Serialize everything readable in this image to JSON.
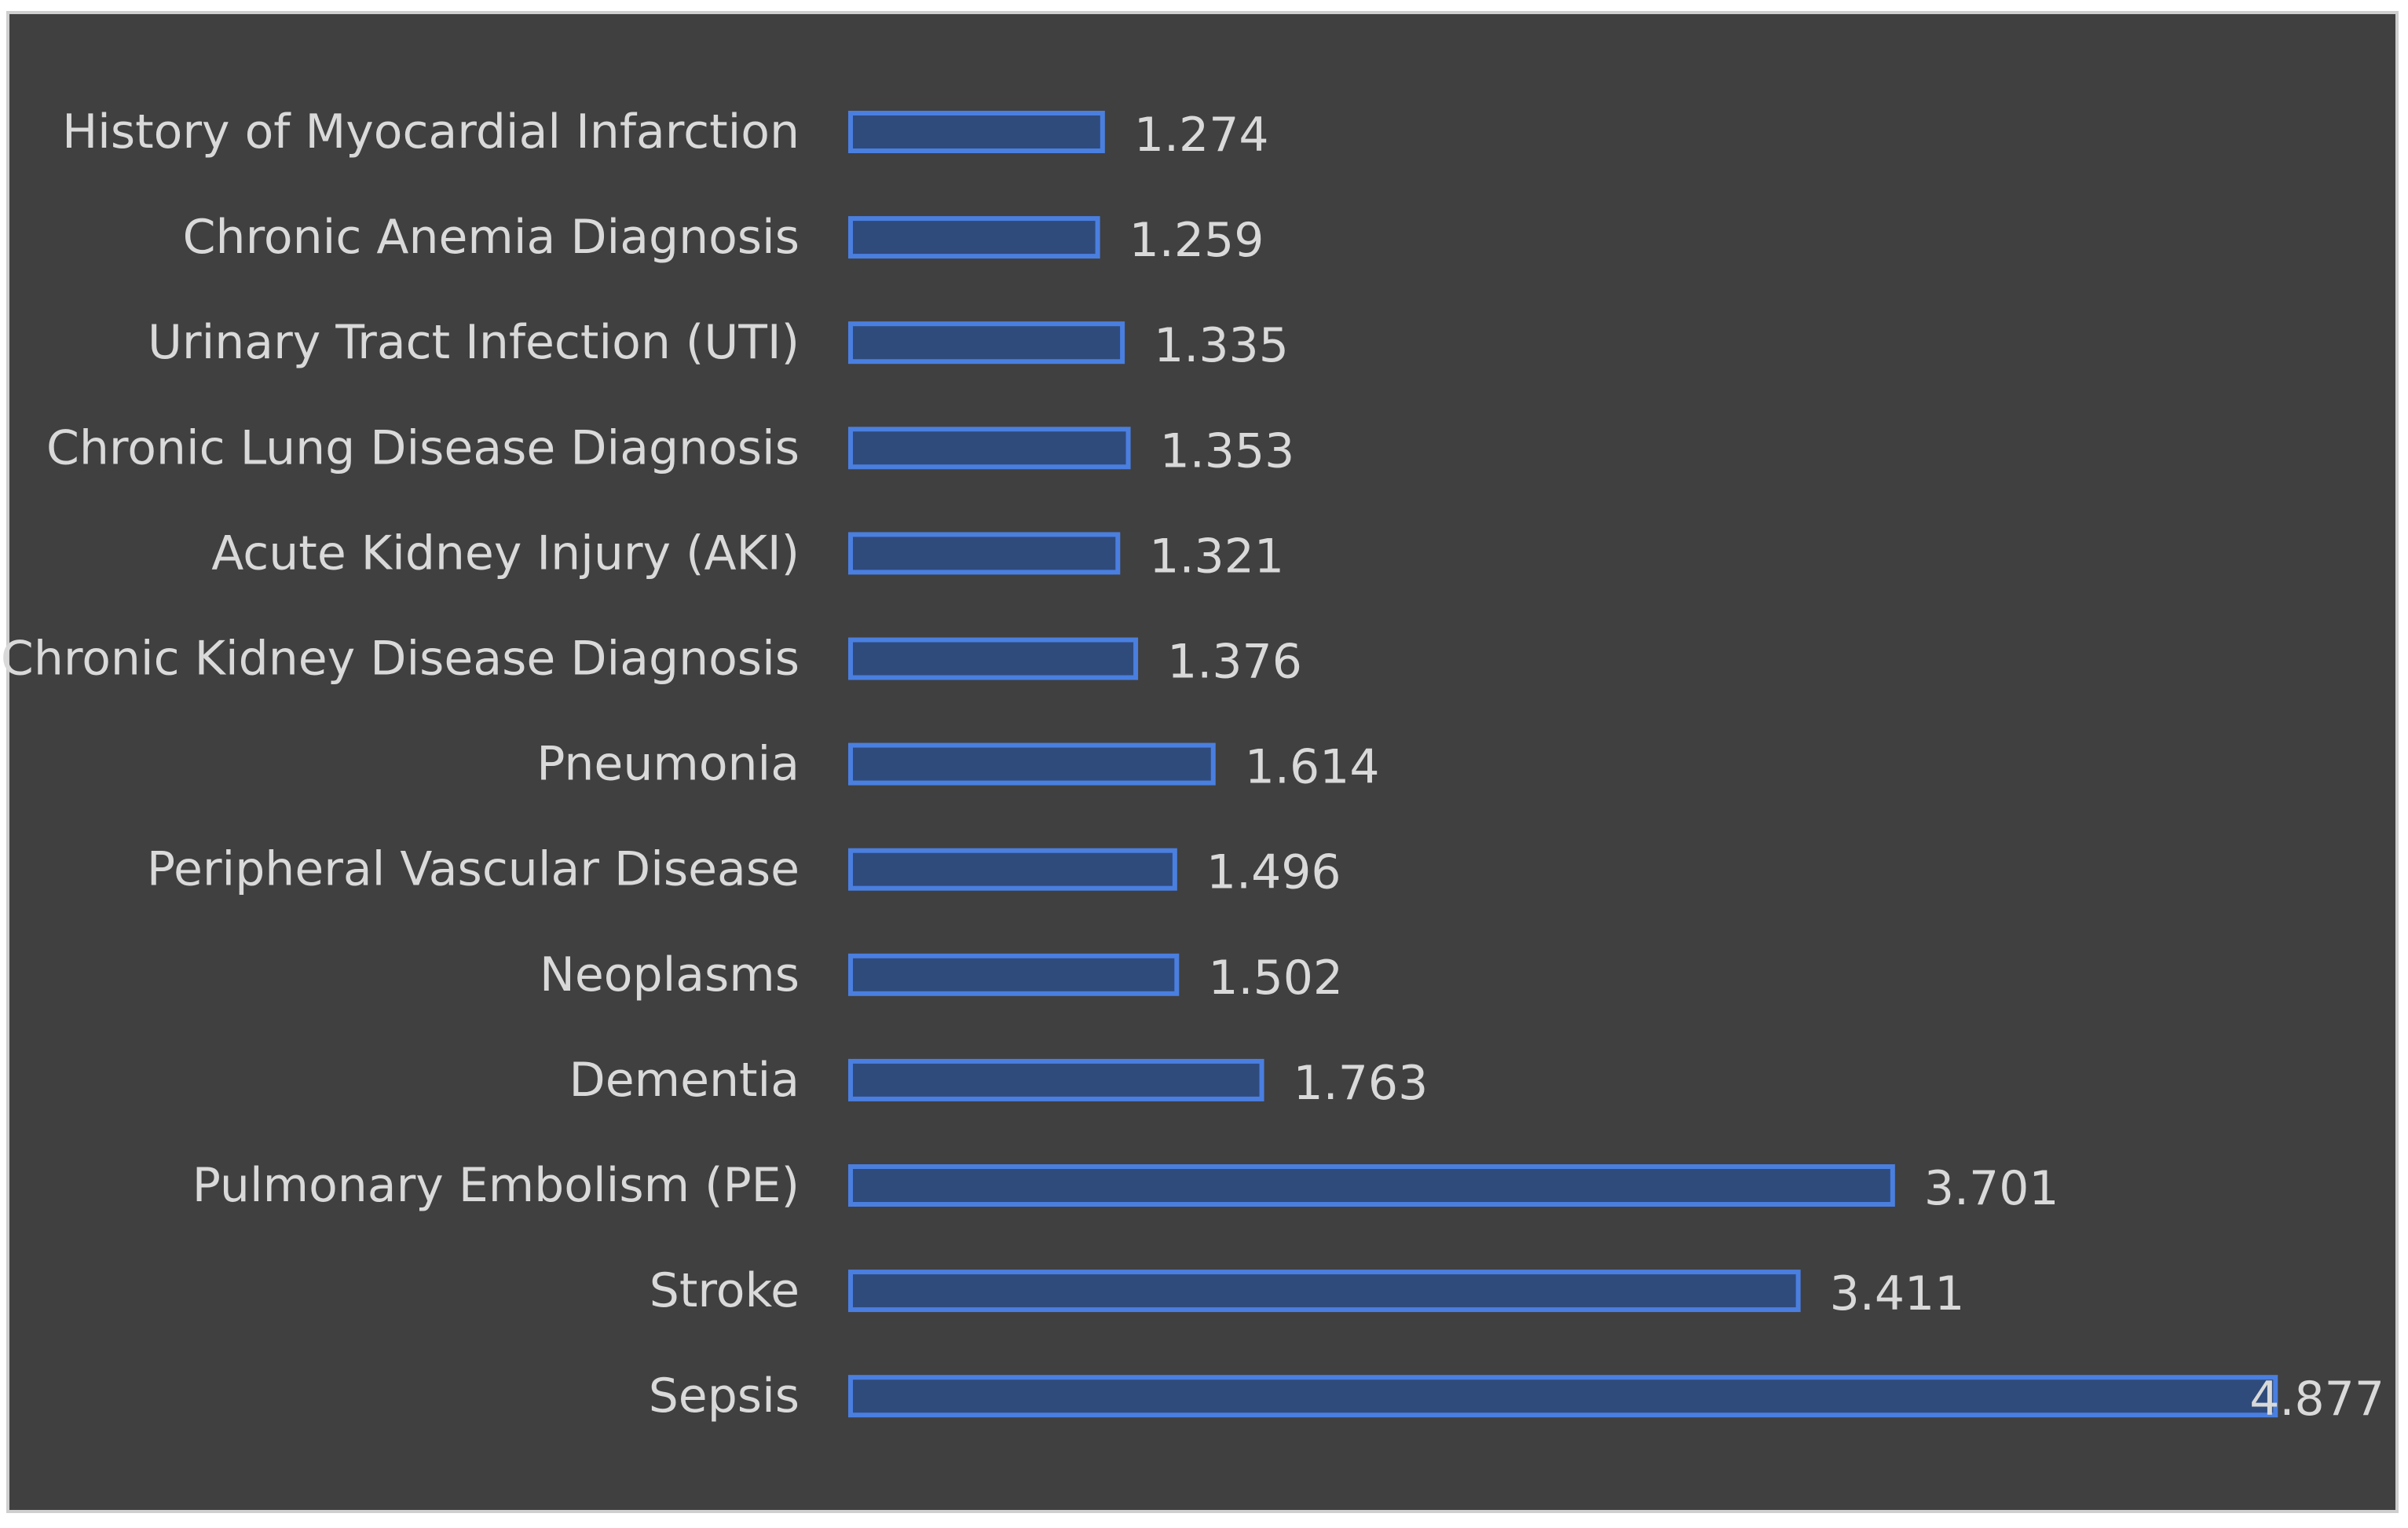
{
  "chart_data": {
    "type": "bar",
    "orientation": "horizontal",
    "title": "",
    "xlabel": "",
    "ylabel": "",
    "categories": [
      "History of Myocardial Infarction",
      "Chronic Anemia Diagnosis",
      "Urinary Tract Infection (UTI)",
      "Chronic Lung Disease Diagnosis",
      "Acute Kidney Injury (AKI)",
      "Chronic Kidney Disease Diagnosis",
      "Pneumonia",
      "Peripheral Vascular Disease",
      "Neoplasms",
      "Dementia",
      "Pulmonary Embolism (PE)",
      "Stroke",
      "Sepsis"
    ],
    "values": [
      1.274,
      1.259,
      1.335,
      1.353,
      1.321,
      1.376,
      1.614,
      1.496,
      1.502,
      1.763,
      3.701,
      3.411,
      4.877
    ],
    "value_labels": [
      "1.274",
      "1.259",
      "1.335",
      "1.353",
      "1.321",
      "1.376",
      "1.614",
      "1.496",
      "1.502",
      "1.763",
      "3.701",
      "3.411",
      "4.877"
    ],
    "xlim": [
      0.5,
      5.0
    ],
    "grid": false,
    "legend": "none",
    "colors": {
      "background": "#404040",
      "bar_fill": "#2f4b7c",
      "bar_edge": "#4a7fe0",
      "text": "#d9d9d9"
    }
  }
}
